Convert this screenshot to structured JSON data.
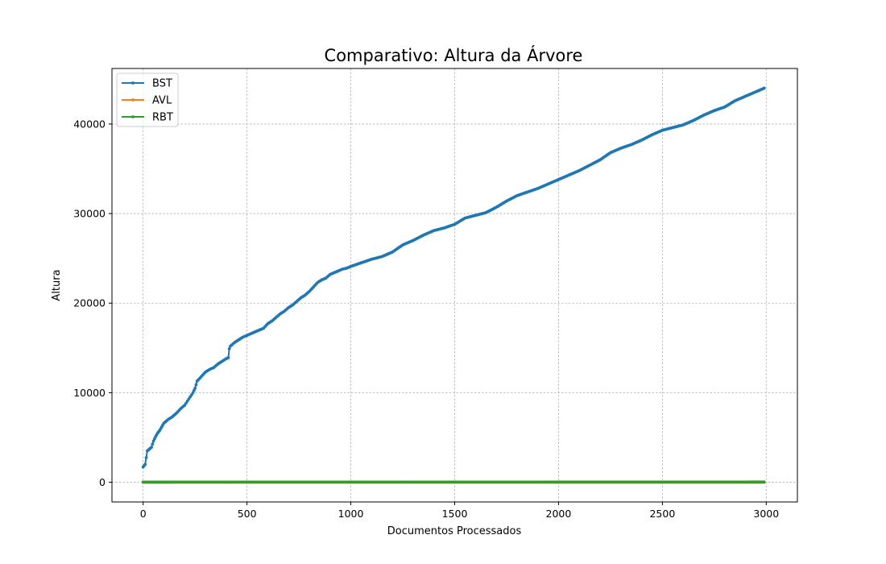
{
  "chart_data": {
    "type": "line",
    "title": "Comparativo: Altura da Árvore",
    "xlabel": "Documentos Processados",
    "ylabel": "Altura",
    "xlim": [
      -150,
      3150
    ],
    "ylim": [
      -2200,
      46200
    ],
    "xticks": [
      0,
      500,
      1000,
      1500,
      2000,
      2500,
      3000
    ],
    "yticks": [
      0,
      10000,
      20000,
      30000,
      40000
    ],
    "grid": true,
    "legend_position": "upper-left",
    "series": [
      {
        "name": "BST",
        "color": "#1f77b4",
        "points": [
          [
            0,
            1700
          ],
          [
            10,
            2000
          ],
          [
            20,
            3500
          ],
          [
            30,
            3700
          ],
          [
            40,
            3900
          ],
          [
            50,
            4600
          ],
          [
            60,
            5100
          ],
          [
            70,
            5500
          ],
          [
            80,
            5800
          ],
          [
            90,
            6200
          ],
          [
            100,
            6600
          ],
          [
            120,
            7000
          ],
          [
            140,
            7300
          ],
          [
            160,
            7700
          ],
          [
            180,
            8200
          ],
          [
            200,
            8600
          ],
          [
            220,
            9300
          ],
          [
            240,
            10000
          ],
          [
            250,
            10500
          ],
          [
            260,
            11300
          ],
          [
            280,
            11800
          ],
          [
            300,
            12300
          ],
          [
            320,
            12600
          ],
          [
            340,
            12800
          ],
          [
            360,
            13200
          ],
          [
            380,
            13500
          ],
          [
            400,
            13800
          ],
          [
            410,
            13900
          ],
          [
            415,
            14900
          ],
          [
            420,
            15200
          ],
          [
            440,
            15600
          ],
          [
            460,
            15900
          ],
          [
            480,
            16200
          ],
          [
            500,
            16400
          ],
          [
            520,
            16600
          ],
          [
            540,
            16800
          ],
          [
            560,
            17000
          ],
          [
            580,
            17200
          ],
          [
            600,
            17700
          ],
          [
            620,
            18000
          ],
          [
            640,
            18400
          ],
          [
            660,
            18800
          ],
          [
            680,
            19100
          ],
          [
            700,
            19500
          ],
          [
            720,
            19800
          ],
          [
            740,
            20200
          ],
          [
            760,
            20600
          ],
          [
            780,
            20900
          ],
          [
            800,
            21300
          ],
          [
            820,
            21800
          ],
          [
            840,
            22300
          ],
          [
            860,
            22600
          ],
          [
            880,
            22800
          ],
          [
            900,
            23200
          ],
          [
            920,
            23400
          ],
          [
            940,
            23600
          ],
          [
            960,
            23800
          ],
          [
            980,
            23900
          ],
          [
            1000,
            24100
          ],
          [
            1050,
            24500
          ],
          [
            1100,
            24900
          ],
          [
            1150,
            25200
          ],
          [
            1200,
            25700
          ],
          [
            1250,
            26500
          ],
          [
            1300,
            27000
          ],
          [
            1350,
            27600
          ],
          [
            1400,
            28100
          ],
          [
            1450,
            28400
          ],
          [
            1500,
            28800
          ],
          [
            1550,
            29500
          ],
          [
            1600,
            29800
          ],
          [
            1650,
            30100
          ],
          [
            1700,
            30700
          ],
          [
            1750,
            31400
          ],
          [
            1800,
            32000
          ],
          [
            1850,
            32400
          ],
          [
            1900,
            32800
          ],
          [
            1950,
            33300
          ],
          [
            2000,
            33800
          ],
          [
            2050,
            34300
          ],
          [
            2100,
            34800
          ],
          [
            2150,
            35400
          ],
          [
            2200,
            36000
          ],
          [
            2250,
            36800
          ],
          [
            2300,
            37300
          ],
          [
            2350,
            37700
          ],
          [
            2400,
            38200
          ],
          [
            2450,
            38800
          ],
          [
            2500,
            39300
          ],
          [
            2550,
            39600
          ],
          [
            2600,
            39900
          ],
          [
            2650,
            40400
          ],
          [
            2700,
            41000
          ],
          [
            2750,
            41500
          ],
          [
            2800,
            41900
          ],
          [
            2850,
            42600
          ],
          [
            2900,
            43100
          ],
          [
            2950,
            43600
          ],
          [
            2990,
            44000
          ]
        ]
      },
      {
        "name": "AVL",
        "color": "#ff7f0e",
        "points": [
          [
            0,
            12
          ],
          [
            400,
            14
          ],
          [
            410,
            17
          ],
          [
            1000,
            18
          ],
          [
            2000,
            19
          ],
          [
            2990,
            20
          ]
        ]
      },
      {
        "name": "RBT",
        "color": "#2ca02c",
        "points": [
          [
            0,
            11
          ],
          [
            400,
            13
          ],
          [
            410,
            16
          ],
          [
            1000,
            17
          ],
          [
            2000,
            18
          ],
          [
            2990,
            19
          ]
        ]
      }
    ]
  }
}
